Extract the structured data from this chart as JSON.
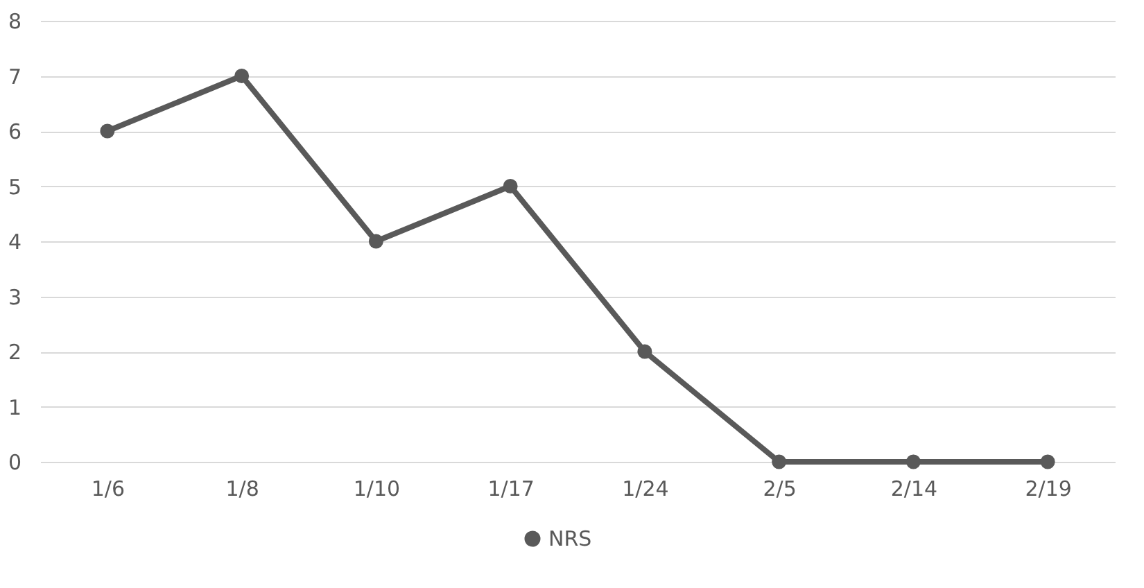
{
  "chart_data": {
    "type": "line",
    "categories": [
      "1/6",
      "1/8",
      "1/10",
      "1/17",
      "1/24",
      "2/5",
      "2/14",
      "2/19"
    ],
    "series": [
      {
        "name": "NRS",
        "color": "#595959",
        "values": [
          6,
          7,
          4,
          5,
          2,
          0,
          0,
          0
        ]
      }
    ],
    "ylim": [
      0,
      8
    ],
    "yticks": [
      0,
      1,
      2,
      3,
      4,
      5,
      6,
      7,
      8
    ],
    "grid": "y",
    "legend": "bottom",
    "marker": "circle",
    "line_style": "solid"
  }
}
